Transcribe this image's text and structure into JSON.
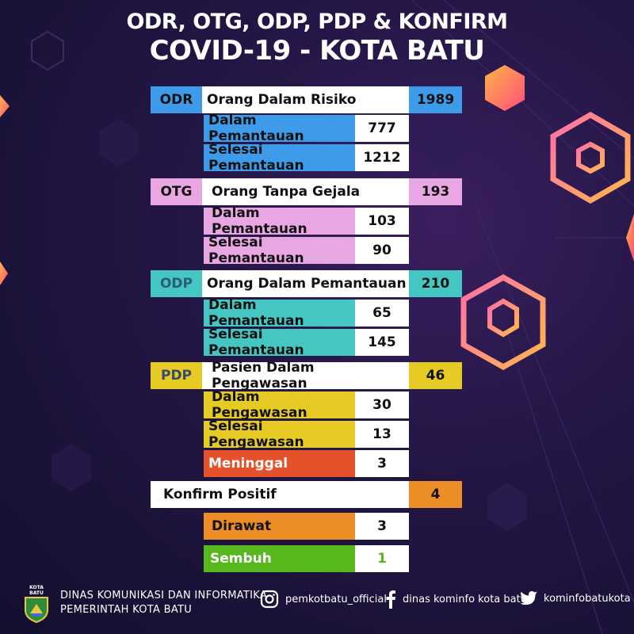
{
  "title": {
    "line1": "ODR, OTG, ODP, PDP & KONFIRM",
    "line2": "COVID-19 - KOTA BATU"
  },
  "groups": {
    "odr": {
      "code": "ODR",
      "label": "Orang Dalam Risiko",
      "total": "1989",
      "color": "#3d9be9",
      "rows": [
        {
          "label": "Dalam Pemantauan",
          "value": "777"
        },
        {
          "label": "Selesai Pemantauan",
          "value": "1212"
        }
      ]
    },
    "otg": {
      "code": "OTG",
      "label": "Orang Tanpa Gejala",
      "total": "193",
      "color": "#e8a7e3",
      "rows": [
        {
          "label": "Dalam Pemantauan",
          "value": "103"
        },
        {
          "label": "Selesai Pemantauan",
          "value": "90"
        }
      ]
    },
    "odp": {
      "code": "ODP",
      "label": "Orang Dalam Pemantauan",
      "total": "210",
      "color": "#46c6c2",
      "rows": [
        {
          "label": "Dalam Pemantauan",
          "value": "65"
        },
        {
          "label": "Selesai Pemantauan",
          "value": "145"
        }
      ]
    },
    "pdp": {
      "code": "PDP",
      "label": "Pasien Dalam Pengawasan",
      "total": "46",
      "color": "#e6cb24",
      "rows": [
        {
          "label": "Dalam Pengawasan",
          "value": "30"
        },
        {
          "label": "Selesai Pengawasan",
          "value": "13"
        },
        {
          "label": "Meninggal",
          "value": "3",
          "color": "#e5512a"
        }
      ]
    },
    "konfirm": {
      "label": "Konfirm Positif",
      "total": "4",
      "color": "#ec8d25",
      "rows": [
        {
          "label": "Dirawat",
          "value": "3",
          "color": "#ec8d25"
        },
        {
          "label": "Sembuh",
          "value": "1",
          "color": "#56b81c"
        }
      ]
    }
  },
  "footer": {
    "logo_text": "KOTA BATU",
    "line1": "DINAS KOMUNIKASI DAN INFORMATIKA",
    "line2": "PEMERINTAH KOTA BATU",
    "instagram": "pemkotbatu_official",
    "facebook": "dinas kominfo kota batu",
    "twitter": "kominfobatukota"
  }
}
